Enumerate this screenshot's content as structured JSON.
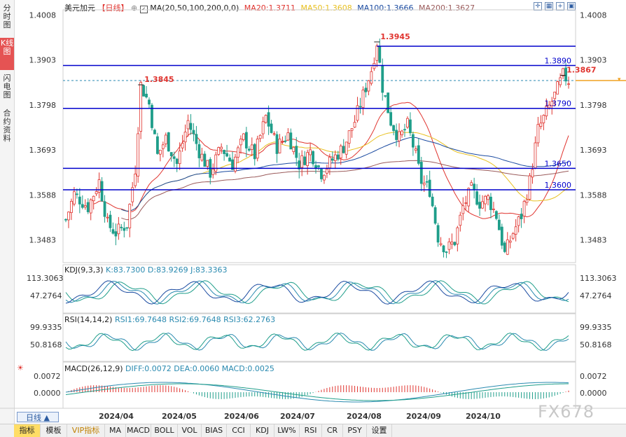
{
  "left_tabs": [
    {
      "label": "分时图",
      "active": false
    },
    {
      "label": "K线图",
      "active": true
    },
    {
      "label": "闪电图",
      "active": false
    },
    {
      "label": "合约资料",
      "active": false
    }
  ],
  "header": {
    "symbol": "美元加元",
    "period": "【日线】",
    "ma_legend": "MA(20,50,100,200,0,0)",
    "ma20": "MA20:1.3711",
    "ma50": "MA50:1.3608",
    "ma100": "MA100:1.3666",
    "ma200": "MA200:1.3627"
  },
  "price_axis": [
    "1.4008",
    "1.3903",
    "1.3798",
    "1.3693",
    "1.3588",
    "1.3483"
  ],
  "date_axis": [
    "2024/04",
    "2024/05",
    "2024/06",
    "2024/07",
    "2024/08",
    "2024/09",
    "2024/10"
  ],
  "levels": [
    {
      "label": "1.3890",
      "value": 1.389
    },
    {
      "label": "1.3790",
      "value": 1.379
    },
    {
      "label": "1.3650",
      "value": 1.365
    },
    {
      "label": "1.3600",
      "value": 1.36
    }
  ],
  "annotations": [
    {
      "label": "1.3845",
      "value": 1.3845,
      "x": "2024-04-16"
    },
    {
      "label": "1.3945",
      "value": 1.3945,
      "x": "2024-08-05"
    },
    {
      "label": "1.3867",
      "value": 1.3867,
      "x": "2024-10-22"
    }
  ],
  "current_price": 1.3855,
  "kdj": {
    "title": "KDJ(9,3,3)",
    "k": "K:83.7300",
    "d": "D:83.9269",
    "j": "J:83.3363",
    "axis": [
      "113.3063",
      "47.2764"
    ]
  },
  "rsi": {
    "title": "RSI(14,14,2)",
    "rsi1": "RSI1:69.7648",
    "rsi2": "RSI2:69.7648",
    "rsi3": "RSI3:62.2763",
    "axis": [
      "99.9335",
      "50.8168"
    ]
  },
  "macd": {
    "title": "MACD(26,12,9)",
    "diff": "DIFF:0.0072",
    "dea": "DEA:0.0060",
    "macd": "MACD:0.0025",
    "axis": [
      "0.0072",
      "0.0000"
    ]
  },
  "bottom_tabs": [
    {
      "label": "指标",
      "active": true
    },
    {
      "label": "模板",
      "active": false
    },
    {
      "label": "VIP指标",
      "active": false,
      "vip": true
    },
    {
      "label": "MA",
      "active": false
    },
    {
      "label": "MACD",
      "active": false
    },
    {
      "label": "BOLL",
      "active": false
    },
    {
      "label": "VOL",
      "active": false
    },
    {
      "label": "BIAS",
      "active": false
    },
    {
      "label": "CCI",
      "active": false
    },
    {
      "label": "KDJ",
      "active": false
    },
    {
      "label": "LW%",
      "active": false
    },
    {
      "label": "RSI",
      "active": false
    },
    {
      "label": "CR",
      "active": false
    },
    {
      "label": "PSY",
      "active": false
    },
    {
      "label": "设置",
      "active": false
    }
  ],
  "period_button": "日线 ▲",
  "watermark": "FX678",
  "colors": {
    "up": "#e0342f",
    "down": "#1f9e8a",
    "level": "#0000cc",
    "ma20": "#e0342f",
    "ma50": "#e8c020",
    "ma100": "#1a4aa0",
    "ma200": "#9a5a5a",
    "annotation": "#e0342f"
  },
  "chart_data": {
    "type": "candlestick",
    "x": [
      "2024-03-20",
      "2024-10-24"
    ],
    "ohlc_path": [
      [
        0,
        1.353
      ],
      [
        3,
        1.359
      ],
      [
        8,
        1.356
      ],
      [
        12,
        1.362
      ],
      [
        15,
        1.352
      ],
      [
        18,
        1.35
      ],
      [
        22,
        1.352
      ],
      [
        25,
        1.365
      ],
      [
        27,
        1.3845
      ],
      [
        30,
        1.38
      ],
      [
        33,
        1.368
      ],
      [
        36,
        1.372
      ],
      [
        40,
        1.366
      ],
      [
        44,
        1.376
      ],
      [
        48,
        1.369
      ],
      [
        52,
        1.364
      ],
      [
        56,
        1.37
      ],
      [
        60,
        1.366
      ],
      [
        64,
        1.372
      ],
      [
        68,
        1.368
      ],
      [
        72,
        1.377
      ],
      [
        76,
        1.37
      ],
      [
        80,
        1.373
      ],
      [
        84,
        1.366
      ],
      [
        88,
        1.369
      ],
      [
        92,
        1.364
      ],
      [
        96,
        1.367
      ],
      [
        100,
        1.37
      ],
      [
        104,
        1.376
      ],
      [
        107,
        1.382
      ],
      [
        110,
        1.388
      ],
      [
        112,
        1.3945
      ],
      [
        114,
        1.384
      ],
      [
        117,
        1.376
      ],
      [
        120,
        1.372
      ],
      [
        123,
        1.375
      ],
      [
        126,
        1.368
      ],
      [
        128,
        1.362
      ],
      [
        131,
        1.36
      ],
      [
        134,
        1.349
      ],
      [
        137,
        1.346
      ],
      [
        140,
        1.348
      ],
      [
        143,
        1.356
      ],
      [
        146,
        1.36
      ],
      [
        149,
        1.357
      ],
      [
        152,
        1.358
      ],
      [
        155,
        1.354
      ],
      [
        158,
        1.345
      ],
      [
        161,
        1.35
      ],
      [
        164,
        1.354
      ],
      [
        167,
        1.362
      ],
      [
        170,
        1.374
      ],
      [
        173,
        1.378
      ],
      [
        176,
        1.382
      ],
      [
        179,
        1.3867
      ],
      [
        181,
        1.3855
      ]
    ],
    "ylim": [
      1.343,
      1.402
    ]
  }
}
